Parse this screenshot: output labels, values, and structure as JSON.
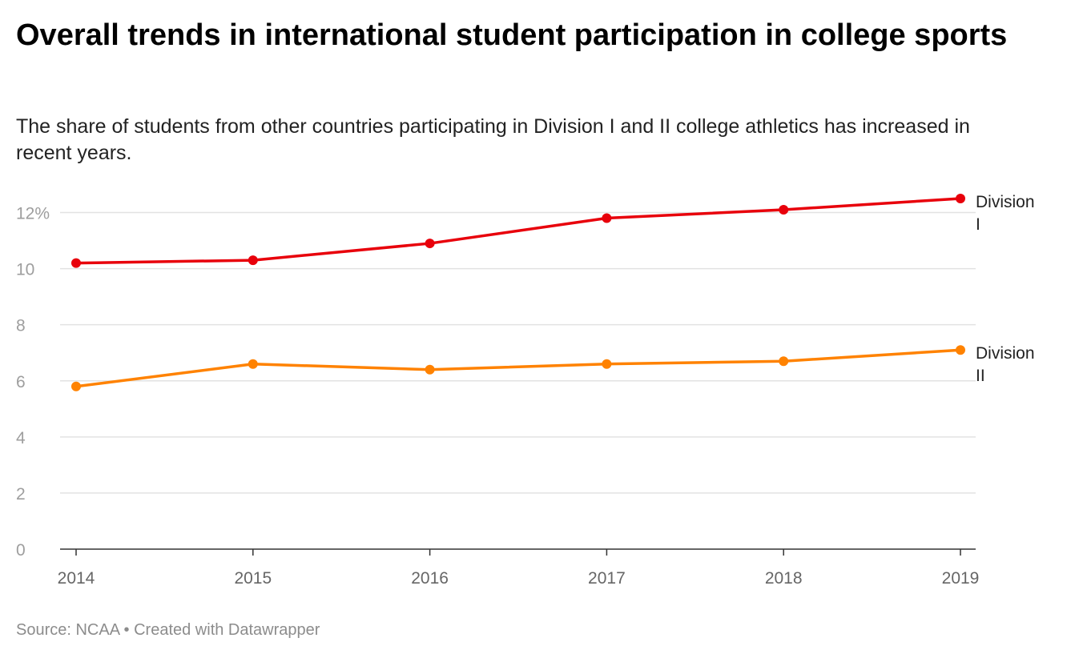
{
  "title": "Overall trends in international student participation in college sports",
  "subtitle": "The share of students from other countries participating in Division I and II college athletics has increased in recent years.",
  "footer": {
    "source": "Source: NCAA",
    "separator": "•",
    "credit": "Created with Datawrapper"
  },
  "chart_data": {
    "type": "line",
    "title": "Overall trends in international student participation in college sports",
    "xlabel": "",
    "ylabel": "",
    "x": [
      "2014",
      "2015",
      "2016",
      "2017",
      "2018",
      "2019"
    ],
    "ylim": [
      0,
      12.5
    ],
    "yticks": [
      0,
      2,
      4,
      6,
      8,
      10,
      12
    ],
    "ytick_labels": [
      "0",
      "2",
      "4",
      "6",
      "8",
      "10",
      "12%"
    ],
    "grid": true,
    "legend": "direct labels at line ends (right)",
    "series": [
      {
        "name": "Division I",
        "label_lines": [
          "Division",
          "I"
        ],
        "color": "#e8000b",
        "values": [
          10.2,
          10.3,
          10.9,
          11.8,
          12.1,
          12.5
        ]
      },
      {
        "name": "Division II",
        "label_lines": [
          "Division",
          "II"
        ],
        "color": "#ff8200",
        "values": [
          5.8,
          6.6,
          6.4,
          6.6,
          6.7,
          7.1
        ]
      }
    ]
  }
}
